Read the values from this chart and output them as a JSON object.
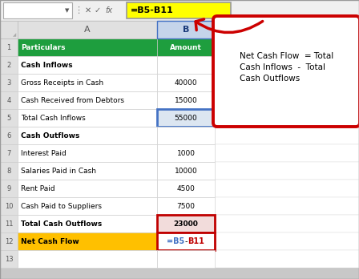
{
  "toolbar_bg": "#f0f0f0",
  "rows": [
    {
      "row": 1,
      "col_a": "Particulars",
      "col_b": "Amount",
      "style": "header_green"
    },
    {
      "row": 2,
      "col_a": "Cash Inflows",
      "col_b": "",
      "style": "bold_left"
    },
    {
      "row": 3,
      "col_a": "Gross Receipts in Cash",
      "col_b": "40000",
      "style": "normal"
    },
    {
      "row": 4,
      "col_a": "Cash Received from Debtors",
      "col_b": "15000",
      "style": "normal"
    },
    {
      "row": 5,
      "col_a": "Total Cash Inflows",
      "col_b": "55000",
      "style": "blue_border"
    },
    {
      "row": 6,
      "col_a": "Cash Outflows",
      "col_b": "",
      "style": "bold_left"
    },
    {
      "row": 7,
      "col_a": "Interest Paid",
      "col_b": "1000",
      "style": "normal"
    },
    {
      "row": 8,
      "col_a": "Salaries Paid in Cash",
      "col_b": "10000",
      "style": "normal"
    },
    {
      "row": 9,
      "col_a": "Rent Paid",
      "col_b": "4500",
      "style": "normal"
    },
    {
      "row": 10,
      "col_a": "Cash Paid to Suppliers",
      "col_b": "7500",
      "style": "normal"
    },
    {
      "row": 11,
      "col_a": "Total Cash Outflows",
      "col_b": "23000",
      "style": "red_border_bold"
    },
    {
      "row": 12,
      "col_a": "Net Cash Flow",
      "col_b": "=B5-B11",
      "style": "yellow_bg_red_border"
    },
    {
      "row": 13,
      "col_a": "",
      "col_b": "",
      "style": "normal"
    }
  ],
  "header_green_bg": "#1e9e3e",
  "header_green_fg": "#ffffff",
  "yellow_bg": "#ffc000",
  "blue_border_color": "#4472c4",
  "blue_cell_bg": "#dce6f1",
  "red_border_color": "#c00000",
  "red_cell_bg": "#f2dcdb",
  "callout_text": "Net Cash Flow  = Total\nCash Inflows  -  Total\nCash Outflows",
  "formula_bar_text": "=B5-B11",
  "formula_bar_bg": "#ffff00",
  "col_b_formula_blue": "#4472c4",
  "col_b_formula_red": "#c00000"
}
